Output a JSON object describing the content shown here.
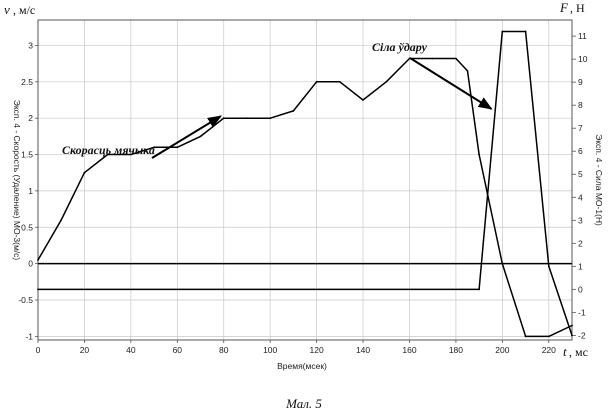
{
  "chart_data": {
    "type": "line",
    "caption": "Мал. 5",
    "x_axis": {
      "label": "Время(мсек)",
      "letter": "t",
      "unit": ", мс",
      "range": [
        0,
        230
      ],
      "ticks": [
        0,
        20,
        40,
        60,
        80,
        100,
        120,
        140,
        160,
        180,
        200,
        220
      ]
    },
    "y_left": {
      "label": "Эксп. 4 - Скорость (Удаление) МО-3(м/с)",
      "letter": "v",
      "unit": ", м/с",
      "range": [
        -1.05,
        3.35
      ],
      "ticks": [
        "-1",
        "-0.5",
        "0",
        "0.5",
        "1",
        "1.5",
        "2",
        "2.5",
        "3"
      ]
    },
    "y_right": {
      "label": "Эксп. 4 - Сила МО-1(Н)",
      "letter": "F",
      "unit": ", Н",
      "range": [
        -2.2,
        11.7
      ],
      "ticks": [
        "-2",
        "-1",
        "0",
        "1",
        "2",
        "3",
        "4",
        "5",
        "6",
        "7",
        "8",
        "9",
        "10",
        "11"
      ]
    },
    "series": [
      {
        "name": "Скорасць мячыка",
        "axis": "left",
        "x": [
          0,
          10,
          20,
          30,
          40,
          50,
          60,
          70,
          80,
          90,
          100,
          110,
          120,
          130,
          140,
          150,
          160,
          170,
          180,
          185,
          190,
          200,
          210,
          220,
          230
        ],
        "y": [
          0.05,
          0.6,
          1.25,
          1.5,
          1.5,
          1.6,
          1.6,
          1.75,
          2.0,
          2.0,
          2.0,
          2.1,
          2.5,
          2.5,
          2.25,
          2.5,
          2.82,
          2.82,
          2.82,
          2.65,
          1.5,
          0.0,
          -1.0,
          -1.0,
          -0.85
        ]
      },
      {
        "name": "Сіла ўдару",
        "axis": "right",
        "x": [
          0,
          190,
          200,
          210,
          220,
          230
        ],
        "y": [
          0,
          0,
          11.2,
          11.2,
          1.0,
          -2.0
        ]
      }
    ],
    "annotations": [
      {
        "text": "Скорасць мячыка",
        "series": "Скорасць мячыка",
        "points_to_x": 80
      },
      {
        "text": "Сіла ўдару",
        "series": "Сіла ўдару",
        "points_to_x": 197
      }
    ],
    "grid": true,
    "legend": "none"
  },
  "colors": {
    "line": "#000000",
    "grid": "#c8c8c8",
    "frame": "#555555",
    "background": "#ffffff"
  }
}
